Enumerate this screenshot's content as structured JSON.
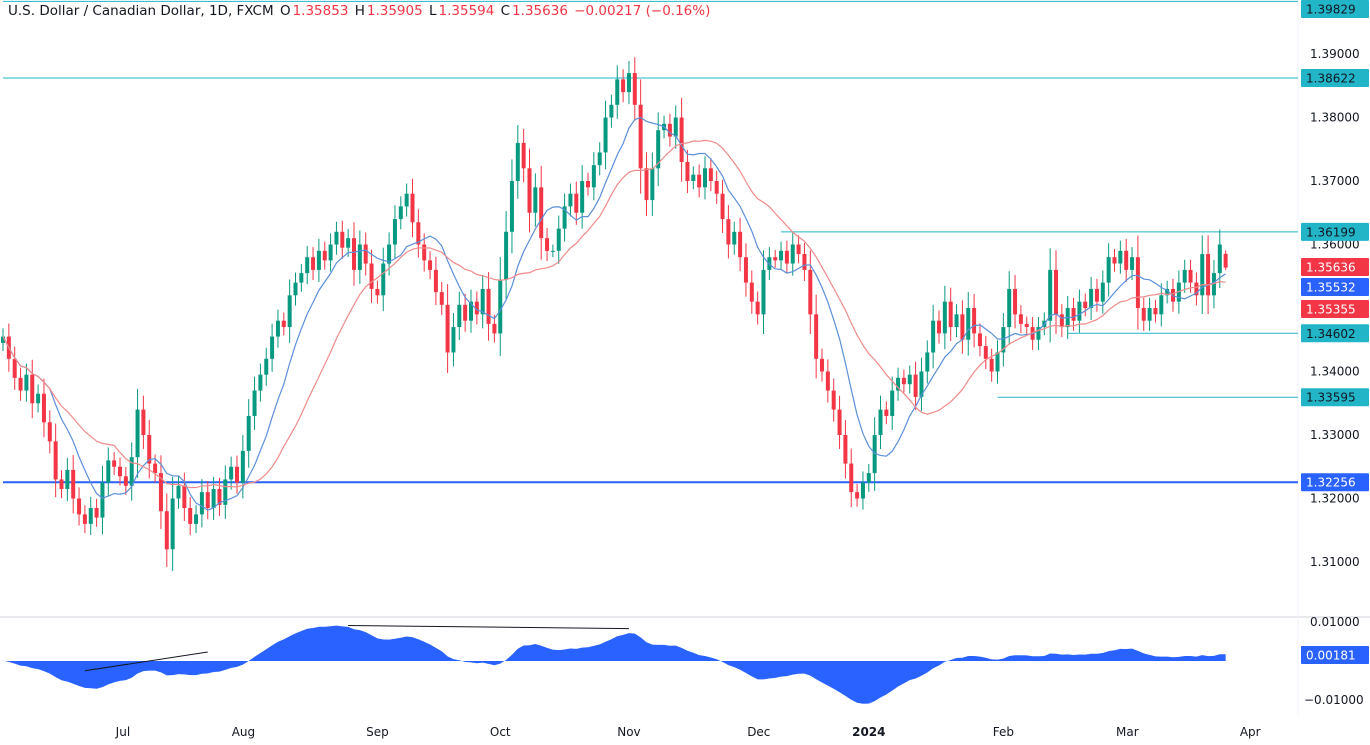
{
  "header": {
    "symbol": "U.S. Dollar / Canadian Dollar, 1D, FXCM",
    "open_label": "O",
    "open": "1.35853",
    "high_label": "H",
    "high": "1.35905",
    "low_label": "L",
    "low": "1.35594",
    "close_label": "C",
    "close": "1.35636",
    "change": "−0.00217 (−0.16%)"
  },
  "colors": {
    "up": "#089981",
    "down": "#f23645",
    "fast_ma": "#5b8fd9",
    "slow_ma": "#f08a8a",
    "level_line": "#22b5c8",
    "support_line": "#2962ff",
    "oscillator": "#2962ff"
  },
  "chart_data": {
    "type": "candlestick",
    "title": "U.S. Dollar / Canadian Dollar, 1D, FXCM",
    "ylim": [
      1.3,
      1.3983
    ],
    "grid": false,
    "y_ticks": [
      "1.39000",
      "1.38000",
      "1.37000",
      "1.36000",
      "1.34000",
      "1.33000",
      "1.32000",
      "1.31000"
    ],
    "x_ticks": [
      {
        "label": "Jul",
        "bar": 20.5
      },
      {
        "label": "Aug",
        "bar": 41.1
      },
      {
        "label": "Sep",
        "bar": 64
      },
      {
        "label": "Oct",
        "bar": 85
      },
      {
        "label": "Nov",
        "bar": 107
      },
      {
        "label": "Dec",
        "bar": 129.2
      },
      {
        "label": "2024",
        "bar": 148,
        "bold": true
      },
      {
        "label": "Feb",
        "bar": 171
      },
      {
        "label": "Mar",
        "bar": 192.2
      },
      {
        "label": "Apr",
        "bar": 213.2
      }
    ],
    "close": [
      1.3455,
      1.342,
      1.339,
      1.337,
      1.3395,
      1.335,
      1.3365,
      1.332,
      1.329,
      1.323,
      1.3215,
      1.3245,
      1.32,
      1.3175,
      1.316,
      1.3185,
      1.317,
      1.3225,
      1.326,
      1.325,
      1.3235,
      1.322,
      1.3265,
      1.334,
      1.33,
      1.3255,
      1.324,
      1.318,
      1.312,
      1.32,
      1.322,
      1.3185,
      1.316,
      1.3175,
      1.321,
      1.3185,
      1.3215,
      1.319,
      1.323,
      1.325,
      1.3225,
      1.3275,
      1.333,
      1.337,
      1.3395,
      1.342,
      1.3455,
      1.348,
      1.347,
      1.352,
      1.354,
      1.3555,
      1.358,
      1.356,
      1.359,
      1.3575,
      1.36,
      1.362,
      1.3595,
      1.361,
      1.356,
      1.36,
      1.357,
      1.353,
      1.352,
      1.357,
      1.36,
      1.364,
      1.366,
      1.368,
      1.3635,
      1.36,
      1.3575,
      1.356,
      1.3525,
      1.3505,
      1.343,
      1.347,
      1.3505,
      1.348,
      1.351,
      1.349,
      1.353,
      1.3475,
      1.346,
      1.3545,
      1.362,
      1.37,
      1.376,
      1.372,
      1.365,
      1.369,
      1.361,
      1.359,
      1.359,
      1.3625,
      1.366,
      1.368,
      1.365,
      1.37,
      1.369,
      1.3725,
      1.3745,
      1.38,
      1.382,
      1.386,
      1.384,
      1.387,
      1.382,
      1.372,
      1.367,
      1.372,
      1.378,
      1.379,
      1.377,
      1.38,
      1.373,
      1.37,
      1.371,
      1.369,
      1.372,
      1.37,
      1.368,
      1.364,
      1.36,
      1.362,
      1.358,
      1.354,
      1.351,
      1.349,
      1.356,
      1.358,
      1.3575,
      1.359,
      1.357,
      1.36,
      1.3585,
      1.356,
      1.349,
      1.342,
      1.34,
      1.337,
      1.334,
      1.33,
      1.3255,
      1.321,
      1.32,
      1.3225,
      1.324,
      1.33,
      1.334,
      1.333,
      1.337,
      1.339,
      1.338,
      1.3395,
      1.336,
      1.34,
      1.343,
      1.348,
      1.346,
      1.351,
      1.347,
      1.349,
      1.345,
      1.35,
      1.346,
      1.344,
      1.342,
      1.34,
      1.343,
      1.347,
      1.353,
      1.349,
      1.3475,
      1.347,
      1.345,
      1.347,
      1.348,
      1.356,
      1.349,
      1.347,
      1.35,
      1.348,
      1.351,
      1.35,
      1.353,
      1.351,
      1.354,
      1.358,
      1.357,
      1.359,
      1.356,
      1.358,
      1.35,
      1.348,
      1.35,
      1.349,
      1.352,
      1.353,
      1.351,
      1.354,
      1.356,
      1.354,
      1.352,
      1.3585,
      1.352,
      1.3555,
      1.36,
      1.35636
    ],
    "last_bar": {
      "open": 1.35853,
      "high": 1.35905,
      "low": 1.35594,
      "close": 1.35636
    },
    "levels": [
      {
        "price": 1.39829,
        "label": "1.39829",
        "from_bar": 0,
        "kind": "level"
      },
      {
        "price": 1.38622,
        "label": "1.38622",
        "from_bar": 0,
        "kind": "level"
      },
      {
        "price": 1.36199,
        "label": "1.36199",
        "from_bar": 133,
        "kind": "level"
      },
      {
        "price": 1.34602,
        "label": "1.34602",
        "from_bar": 182,
        "kind": "level"
      },
      {
        "price": 1.33595,
        "label": "1.33595",
        "from_bar": 170,
        "kind": "level"
      },
      {
        "price": 1.32256,
        "label": "1.32256",
        "from_bar": 0,
        "kind": "support"
      }
    ],
    "price_labels": [
      {
        "price": 1.35636,
        "label": "1.35636",
        "color": "#f23645"
      },
      {
        "price": 1.35532,
        "label": "1.35532",
        "color": "#2962ff"
      },
      {
        "price": 1.35355,
        "label": "1.35355",
        "color": "#f23645"
      }
    ],
    "oscillator": {
      "current": "0.00181",
      "y_ticks": [
        "0.01000",
        "-0.01000"
      ],
      "ylim": [
        -0.0125,
        0.0105
      ],
      "trendlines": [
        {
          "from_bar": 14,
          "from": -0.0025,
          "to_bar": 35,
          "to": 0.0023
        },
        {
          "from_bar": 59,
          "from": 0.0091,
          "to_bar": 107,
          "to": 0.0083
        }
      ]
    }
  }
}
